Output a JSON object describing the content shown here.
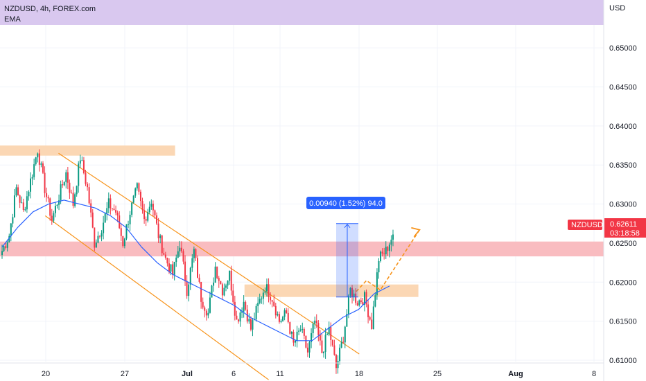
{
  "header": {
    "symbol_line": "NZDUSD, 4h, FOREX.com",
    "indicator": "EMA",
    "banner_color": "#d9c8ef"
  },
  "axis": {
    "currency_label": "USD"
  },
  "price_badge": {
    "symbol": "NZDUSD",
    "price": "0.62611",
    "countdown": "03:18:58",
    "color": "#f23645"
  },
  "measure": {
    "label": "0.00940 (1.52%) 94.0",
    "color": "#2962ff"
  },
  "colors": {
    "up": "#089981",
    "down": "#f23645",
    "ema": "#2962ff",
    "channel": "#f7931a",
    "supply_zone": "#fbd5b0",
    "key_zone": "#f9b8bd"
  },
  "chart_data": {
    "type": "candlestick",
    "interval": "4h",
    "ylim": [
      0.6075,
      0.6555
    ],
    "y_ticks": [
      "0.65000",
      "0.64500",
      "0.64000",
      "0.63500",
      "0.63000",
      "0.62500",
      "0.62000",
      "0.61500",
      "0.61000"
    ],
    "x_ticks": [
      {
        "label": "20",
        "bold": false
      },
      {
        "label": "27",
        "bold": false
      },
      {
        "label": "Jul",
        "bold": true
      },
      {
        "label": "6",
        "bold": false
      },
      {
        "label": "11",
        "bold": false
      },
      {
        "label": "18",
        "bold": false
      },
      {
        "label": "25",
        "bold": false
      },
      {
        "label": "Aug",
        "bold": true
      },
      {
        "label": "8",
        "bold": false
      }
    ],
    "anchors": [
      0.624,
      0.626,
      0.632,
      0.629,
      0.633,
      0.637,
      0.632,
      0.628,
      0.631,
      0.634,
      0.63,
      0.636,
      0.632,
      0.625,
      0.627,
      0.63,
      0.629,
      0.625,
      0.629,
      0.632,
      0.628,
      0.6305,
      0.626,
      0.623,
      0.621,
      0.625,
      0.619,
      0.624,
      0.618,
      0.616,
      0.622,
      0.619,
      0.621,
      0.615,
      0.6175,
      0.614,
      0.617,
      0.6195,
      0.618,
      0.615,
      0.616,
      0.612,
      0.614,
      0.611,
      0.615,
      0.611,
      0.614,
      0.609,
      0.613,
      0.619,
      0.6175,
      0.618,
      0.6145,
      0.623,
      0.624,
      0.6261
    ],
    "ema_anchors": [
      0.6245,
      0.627,
      0.629,
      0.63,
      0.6305,
      0.63,
      0.6295,
      0.6285,
      0.627,
      0.6245,
      0.6225,
      0.621,
      0.62,
      0.619,
      0.618,
      0.617,
      0.6155,
      0.6145,
      0.6135,
      0.6125,
      0.6125,
      0.614,
      0.6155,
      0.6165,
      0.6185,
      0.6195
    ],
    "channel_upper": {
      "start": [
        0.6365,
        0.097
      ],
      "end": [
        0.6108,
        0.595
      ]
    },
    "channel_lower": {
      "start": [
        0.6285,
        0.075
      ],
      "end": [
        0.6075,
        0.445
      ]
    },
    "zones": [
      {
        "name": "supply",
        "from": 0.6362,
        "to": 0.6375,
        "x0": 0.0,
        "x1": 0.29
      },
      {
        "name": "key",
        "from": 0.6233,
        "to": 0.6252,
        "x0": 0.0,
        "x1": 1.0
      },
      {
        "name": "demand",
        "from": 0.6181,
        "to": 0.6197,
        "x0": 0.405,
        "x1": 0.693
      }
    ],
    "projection": [
      [
        0.6188,
        0.59
      ],
      [
        0.6202,
        0.607
      ],
      [
        0.619,
        0.63
      ],
      [
        0.6267,
        0.695
      ]
    ],
    "measure_range": [
      0.6181,
      0.6275
    ]
  }
}
